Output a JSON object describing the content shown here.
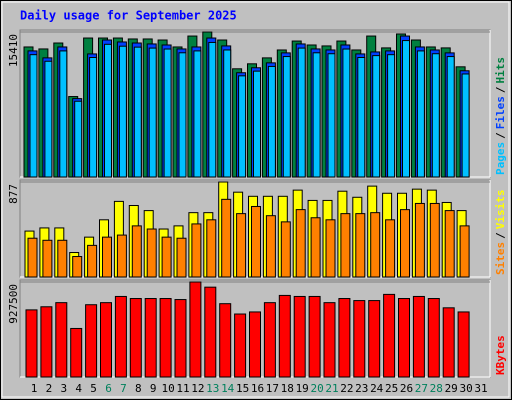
{
  "title": "Daily usage for September 2025",
  "legend_separator": "/",
  "chart_data": [
    {
      "type": "bar",
      "ylim": [
        0,
        15410
      ],
      "yticks": [
        15410
      ],
      "series": [
        {
          "name": "Hits",
          "color": "#008040",
          "values": [
            13820,
            13610,
            14240,
            8550,
            14770,
            14770,
            14770,
            14670,
            14670,
            14560,
            13820,
            14980,
            15410,
            14560,
            11500,
            12030,
            12660,
            13500,
            14450,
            14030,
            13930,
            14450,
            13500,
            14980,
            13720,
            15200,
            14560,
            13820,
            13720,
            11710,
            null
          ]
        },
        {
          "name": "Files",
          "color": "#0040FF",
          "values": [
            13400,
            12660,
            13820,
            8330,
            13080,
            14560,
            14350,
            14240,
            14140,
            14030,
            13610,
            13820,
            14770,
            13930,
            11080,
            11610,
            12130,
            13190,
            14140,
            13610,
            13500,
            14030,
            13080,
            13290,
            13400,
            14980,
            13820,
            13500,
            13190,
            11290,
            null
          ]
        },
        {
          "name": "Pages",
          "color": "#00C0FF",
          "values": [
            13000,
            12300,
            13400,
            8050,
            12700,
            14100,
            13900,
            13800,
            13700,
            13600,
            13200,
            13400,
            14300,
            13500,
            10750,
            11250,
            11750,
            12800,
            13700,
            13200,
            13100,
            13600,
            12700,
            12900,
            13000,
            14500,
            13400,
            13100,
            12800,
            10950,
            null
          ]
        }
      ]
    },
    {
      "type": "bar",
      "ylim": [
        0,
        877
      ],
      "yticks": [
        877
      ],
      "series": [
        {
          "name": "Visits",
          "color": "#FFFF00",
          "values": [
            424,
            453,
            453,
            226,
            368,
            528,
            698,
            660,
            613,
            443,
            472,
            594,
            594,
            877,
            783,
            745,
            745,
            745,
            802,
            707,
            707,
            792,
            736,
            839,
            773,
            773,
            811,
            802,
            688,
            613,
            null
          ]
        },
        {
          "name": "Sites",
          "color": "#FF8000",
          "values": [
            358,
            339,
            339,
            189,
            292,
            368,
            387,
            472,
            443,
            368,
            358,
            490,
            528,
            717,
            585,
            651,
            566,
            509,
            622,
            547,
            528,
            585,
            585,
            594,
            528,
            622,
            679,
            679,
            613,
            472,
            null
          ]
        }
      ]
    },
    {
      "type": "bar",
      "ylim": [
        0,
        927500
      ],
      "yticks": [
        927500
      ],
      "categories": [
        "1",
        "2",
        "3",
        "4",
        "5",
        "6",
        "7",
        "8",
        "9",
        "10",
        "11",
        "12",
        "13",
        "14",
        "15",
        "16",
        "17",
        "18",
        "19",
        "20",
        "21",
        "22",
        "23",
        "24",
        "25",
        "26",
        "27",
        "28",
        "29",
        "30",
        "31"
      ],
      "category_colors": [
        "#000000",
        "#000000",
        "#000000",
        "#000000",
        "#000000",
        "#00805C",
        "#00805C",
        "#000000",
        "#000000",
        "#000000",
        "#000000",
        "#000000",
        "#00805C",
        "#00805C",
        "#000000",
        "#000000",
        "#000000",
        "#000000",
        "#000000",
        "#00805C",
        "#00805C",
        "#000000",
        "#000000",
        "#000000",
        "#000000",
        "#000000",
        "#00805C",
        "#00805C",
        "#000000",
        "#000000",
        "#000000"
      ],
      "series": [
        {
          "name": "KBytes",
          "color": "#FF0000",
          "values": [
            655300,
            685600,
            725900,
            473900,
            705700,
            725900,
            786400,
            766200,
            766200,
            766200,
            756100,
            927500,
            877100,
            715800,
            615000,
            635200,
            725900,
            796500,
            786400,
            786400,
            725900,
            766200,
            746100,
            746100,
            806600,
            766200,
            786400,
            766200,
            675500,
            635200,
            null
          ]
        }
      ]
    }
  ]
}
